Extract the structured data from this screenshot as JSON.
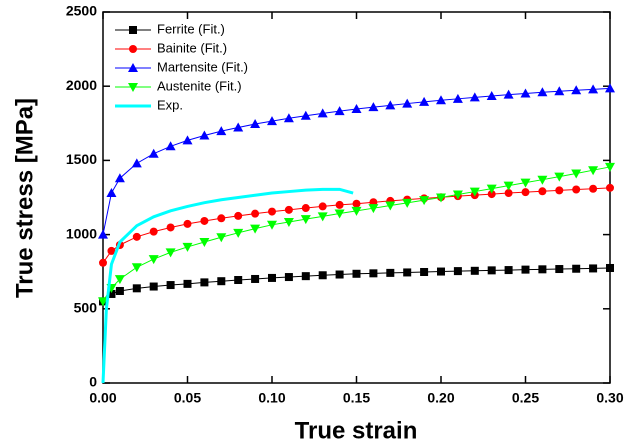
{
  "chart_data": {
    "type": "line",
    "xlabel": "True strain",
    "ylabel": "True stress [MPa]",
    "x": [
      0,
      0.005,
      0.01,
      0.02,
      0.03,
      0.04,
      0.05,
      0.06,
      0.07,
      0.08,
      0.09,
      0.1,
      0.11,
      0.12,
      0.13,
      0.14,
      0.15,
      0.16,
      0.17,
      0.18,
      0.19,
      0.2,
      0.21,
      0.22,
      0.23,
      0.24,
      0.25,
      0.26,
      0.27,
      0.28,
      0.29,
      0.3
    ],
    "xlim": [
      0,
      0.3
    ],
    "xticks": [
      {
        "value": 0,
        "label": "0.00"
      },
      {
        "value": 0.05,
        "label": "0.05"
      },
      {
        "value": 0.1,
        "label": "0.10"
      },
      {
        "value": 0.15,
        "label": "0.15"
      },
      {
        "value": 0.2,
        "label": "0.20"
      },
      {
        "value": 0.25,
        "label": "0.25"
      },
      {
        "value": 0.3,
        "label": "0.30"
      }
    ],
    "ylim": [
      0,
      2500
    ],
    "yticks": [
      0,
      500,
      1000,
      1500,
      2000,
      2500
    ],
    "legend": "upper-left",
    "series": [
      {
        "name": "Ferrite (Fit.)",
        "color": "#000000",
        "marker": "square",
        "values": [
          550,
          600,
          620,
          638,
          650,
          660,
          668,
          678,
          686,
          694,
          701,
          708,
          714,
          720,
          726,
          731,
          736,
          739,
          742,
          745,
          748,
          751,
          754,
          756,
          759,
          761,
          764,
          766,
          768,
          770,
          772,
          775
        ]
      },
      {
        "name": "Bainite (Fit.)",
        "color": "#ff0000",
        "marker": "circle",
        "values": [
          810,
          890,
          930,
          985,
          1020,
          1048,
          1072,
          1092,
          1110,
          1126,
          1141,
          1155,
          1167,
          1179,
          1190,
          1200,
          1208,
          1218,
          1227,
          1236,
          1244,
          1252,
          1259,
          1266,
          1273,
          1280,
          1286,
          1292,
          1298,
          1304,
          1309,
          1315
        ]
      },
      {
        "name": "Martensite (Fit.)",
        "color": "#0000ff",
        "marker": "triangle-up",
        "values": [
          1000,
          1280,
          1380,
          1480,
          1545,
          1595,
          1635,
          1668,
          1697,
          1722,
          1745,
          1765,
          1784,
          1801,
          1817,
          1832,
          1846,
          1859,
          1871,
          1883,
          1894,
          1905,
          1915,
          1925,
          1934,
          1943,
          1951,
          1959,
          1966,
          1973,
          1979,
          1985
        ]
      },
      {
        "name": "Austenite (Fit.)",
        "color": "#00ff00",
        "marker": "triangle-down",
        "values": [
          550,
          640,
          700,
          780,
          835,
          880,
          917,
          950,
          982,
          1012,
          1040,
          1066,
          1085,
          1104,
          1123,
          1142,
          1160,
          1178,
          1196,
          1214,
          1232,
          1250,
          1270,
          1290,
          1310,
          1330,
          1350,
          1370,
          1391,
          1412,
          1434,
          1456
        ]
      },
      {
        "name": "Exp.",
        "color": "#00ffff",
        "x": [
          0,
          0.002,
          0.005,
          0.01,
          0.02,
          0.03,
          0.04,
          0.05,
          0.06,
          0.07,
          0.08,
          0.09,
          0.1,
          0.11,
          0.12,
          0.13,
          0.14,
          0.148
        ],
        "values": [
          0,
          500,
          800,
          950,
          1060,
          1120,
          1160,
          1190,
          1215,
          1235,
          1250,
          1265,
          1280,
          1290,
          1300,
          1305,
          1305,
          1280
        ]
      }
    ]
  }
}
